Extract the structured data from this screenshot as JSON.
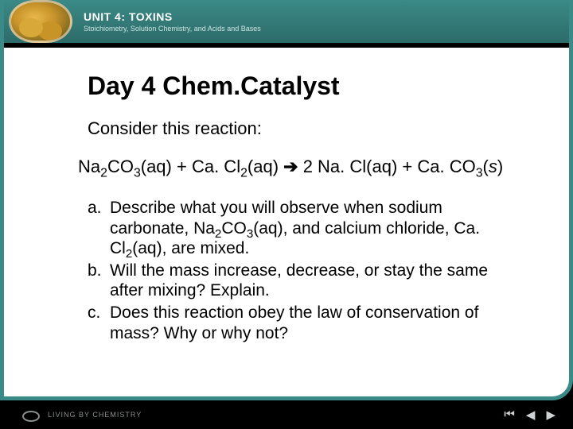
{
  "colors": {
    "teal": "#3a8a87",
    "black": "#000000",
    "white": "#ffffff",
    "footer_text": "#8a9090"
  },
  "header": {
    "unit_label": "UNIT 4: TOXINS",
    "subtitle": "Stoichiometry, Solution Chemistry, and Acids and Bases",
    "icon_name": "toxins-icon"
  },
  "content": {
    "title": "Day 4 Chem.Catalyst",
    "consider": "Consider this reaction:",
    "equation": {
      "lhs1": "Na",
      "lhs1_sub": "2",
      "lhs2": "CO",
      "lhs2_sub": "3",
      "lhs_state1": "(aq)",
      "plus1": " + ",
      "lhs3": "Ca. Cl",
      "lhs3_sub": "2",
      "lhs_state2": "(aq)",
      "arrow": " ➔ ",
      "rhs1": "2 Na. Cl",
      "rhs_state1": "(aq)",
      "plus2": " + ",
      "rhs2": "Ca. CO",
      "rhs2_sub": "3",
      "rhs_state2_open": "(",
      "rhs_state2_s": "s",
      "rhs_state2_close": ")"
    },
    "questions": [
      {
        "label": "a.",
        "text_pre": "Describe what you will observe when sodium carbonate, Na",
        "f1_sub": "2",
        "f1_mid": "CO",
        "f1_sub2": "3",
        "f1_state": "(aq)",
        "text_mid": ", and calcium chloride, Ca. Cl",
        "f2_sub": "2",
        "f2_state": "(aq)",
        "text_post": ", are mixed."
      },
      {
        "label": "b.",
        "text": "Will the mass increase, decrease, or stay the same after mixing? Explain."
      },
      {
        "label": "c.",
        "text": "Does this reaction obey the law of conservation of mass?  Why or why not?"
      }
    ]
  },
  "footer": {
    "brand": "LIVING BY CHEMISTRY",
    "nav": {
      "first": "⏮",
      "prev": "◀",
      "next": "▶"
    }
  }
}
